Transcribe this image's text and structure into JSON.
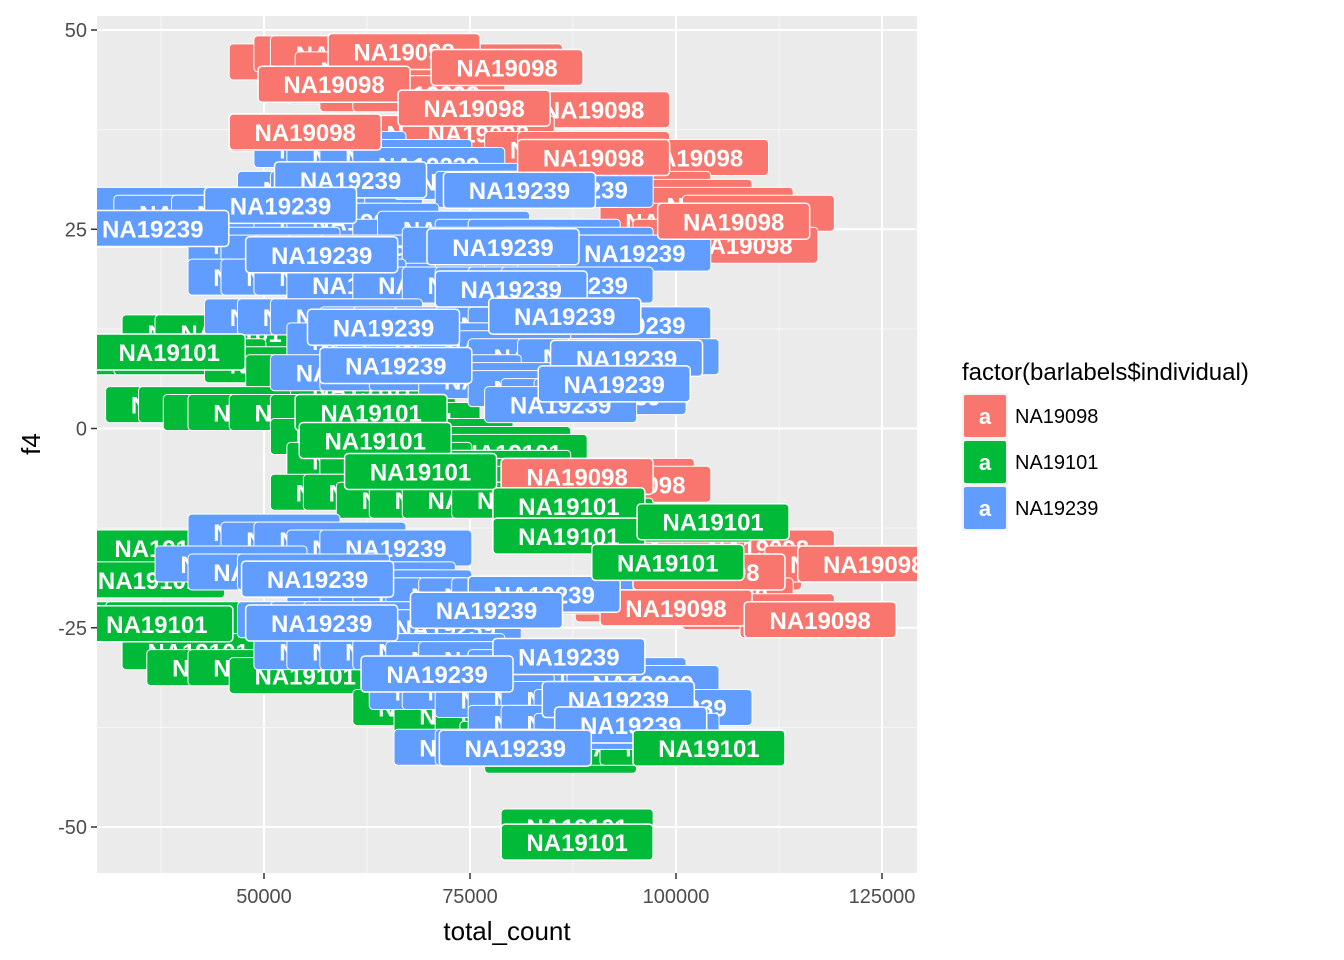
{
  "chart_data": {
    "type": "scatter",
    "geom": "label",
    "xlabel": "total_count",
    "ylabel": "f4",
    "xlim": [
      30000,
      128000
    ],
    "ylim": [
      -56,
      52
    ],
    "x_ticks": [
      50000,
      75000,
      100000,
      125000
    ],
    "x_minor_ticks": [
      37500,
      62500,
      87500,
      112500
    ],
    "y_ticks": [
      -50,
      -25,
      0,
      25,
      50
    ],
    "y_minor_ticks": [
      -37.5,
      -12.5,
      12.5,
      37.5
    ],
    "grid": true,
    "legend": {
      "title": "factor(barlabels$individual)",
      "placement": "right",
      "key_glyph": "a",
      "entries": [
        {
          "name": "NA19098",
          "color": "#F8766D"
        },
        {
          "name": "NA19101",
          "color": "#00BA38"
        },
        {
          "name": "NA19239",
          "color": "#619CFF"
        }
      ]
    },
    "series": [
      {
        "name": "NA19098",
        "color": "#F8766D",
        "points": [
          [
            55000,
            46
          ],
          [
            58000,
            47
          ],
          [
            60000,
            47
          ],
          [
            63000,
            45
          ],
          [
            67000,
            47
          ],
          [
            77000,
            46
          ],
          [
            62000,
            43
          ],
          [
            66000,
            42
          ],
          [
            70000,
            42
          ],
          [
            80000,
            40
          ],
          [
            84000,
            40
          ],
          [
            88000,
            40
          ],
          [
            90000,
            40
          ],
          [
            55000,
            37
          ],
          [
            61000,
            37
          ],
          [
            65000,
            37
          ],
          [
            71000,
            37
          ],
          [
            76000,
            37
          ],
          [
            86000,
            35
          ],
          [
            90000,
            35
          ],
          [
            93000,
            34
          ],
          [
            95000,
            34
          ],
          [
            98000,
            34
          ],
          [
            102000,
            34
          ],
          [
            95000,
            30
          ],
          [
            100000,
            29
          ],
          [
            105000,
            28
          ],
          [
            110000,
            27
          ],
          [
            100000,
            26
          ],
          [
            104000,
            24
          ],
          [
            108000,
            23
          ],
          [
            83000,
            -6
          ],
          [
            88000,
            -6
          ],
          [
            93000,
            -6
          ],
          [
            95000,
            -7
          ],
          [
            100000,
            -14
          ],
          [
            103000,
            -15
          ],
          [
            107000,
            -15
          ],
          [
            110000,
            -15
          ],
          [
            100000,
            -18
          ],
          [
            104000,
            -18
          ],
          [
            106000,
            -18
          ],
          [
            120000,
            -17
          ],
          [
            97000,
            -22
          ],
          [
            100000,
            -22
          ],
          [
            105000,
            -21
          ],
          [
            110000,
            -23
          ],
          [
            117000,
            -24
          ]
        ]
      },
      {
        "name": "NA19101",
        "color": "#00BA38",
        "points": [
          [
            42000,
            12
          ],
          [
            46000,
            12
          ],
          [
            38000,
            9
          ],
          [
            41000,
            9
          ],
          [
            52000,
            8
          ],
          [
            57000,
            7
          ],
          [
            60000,
            6
          ],
          [
            62000,
            5
          ],
          [
            40000,
            3
          ],
          [
            44000,
            3
          ],
          [
            47000,
            2
          ],
          [
            50000,
            2
          ],
          [
            55000,
            2
          ],
          [
            60000,
            2
          ],
          [
            64000,
            2
          ],
          [
            67000,
            1
          ],
          [
            60000,
            -1
          ],
          [
            64000,
            -1
          ],
          [
            66000,
            -1
          ],
          [
            71000,
            -1
          ],
          [
            75000,
            -2
          ],
          [
            78000,
            -2
          ],
          [
            80000,
            -3
          ],
          [
            62000,
            -4
          ],
          [
            66000,
            -4
          ],
          [
            70000,
            -5
          ],
          [
            74000,
            -5
          ],
          [
            78000,
            -5
          ],
          [
            80000,
            -6
          ],
          [
            85000,
            -7
          ],
          [
            60000,
            -8
          ],
          [
            64000,
            -8
          ],
          [
            68000,
            -9
          ],
          [
            72000,
            -9
          ],
          [
            76000,
            -9
          ],
          [
            82000,
            -9
          ],
          [
            88000,
            -11
          ],
          [
            92000,
            -12
          ],
          [
            96000,
            -12
          ],
          [
            100000,
            -12
          ],
          [
            35000,
            -15
          ],
          [
            38000,
            -15
          ],
          [
            36000,
            -19
          ],
          [
            35000,
            -24
          ],
          [
            40000,
            -24
          ],
          [
            42000,
            -28
          ],
          [
            45000,
            -30
          ],
          [
            50000,
            -30
          ],
          [
            55000,
            -31
          ],
          [
            70000,
            -35
          ],
          [
            75000,
            -36
          ],
          [
            80000,
            -36
          ],
          [
            83000,
            -39
          ],
          [
            86000,
            -41
          ],
          [
            94000,
            -40
          ],
          [
            100000,
            -40
          ],
          [
            104000,
            -40
          ],
          [
            88000,
            -50
          ]
        ]
      },
      {
        "name": "NA19239",
        "color": "#619CFF",
        "points": [
          [
            58000,
            35
          ],
          [
            62000,
            34
          ],
          [
            66000,
            34
          ],
          [
            70000,
            33
          ],
          [
            56000,
            30
          ],
          [
            60000,
            30
          ],
          [
            75000,
            31
          ],
          [
            80000,
            30
          ],
          [
            84000,
            30
          ],
          [
            88000,
            30
          ],
          [
            38000,
            28
          ],
          [
            41000,
            27
          ],
          [
            48000,
            27
          ],
          [
            53000,
            27
          ],
          [
            58000,
            26
          ],
          [
            62000,
            26
          ],
          [
            70000,
            24
          ],
          [
            73000,
            25
          ],
          [
            80000,
            24
          ],
          [
            84000,
            24
          ],
          [
            88000,
            23
          ],
          [
            36000,
            25
          ],
          [
            50000,
            23
          ],
          [
            54000,
            22
          ],
          [
            58000,
            22
          ],
          [
            62000,
            22
          ],
          [
            66000,
            22
          ],
          [
            76000,
            23
          ],
          [
            80000,
            22
          ],
          [
            86000,
            22
          ],
          [
            90000,
            22
          ],
          [
            95000,
            22
          ],
          [
            50000,
            19
          ],
          [
            54000,
            19
          ],
          [
            58000,
            19
          ],
          [
            62000,
            18
          ],
          [
            70000,
            18
          ],
          [
            76000,
            18
          ],
          [
            80000,
            18
          ],
          [
            84000,
            18
          ],
          [
            88000,
            18
          ],
          [
            52000,
            14
          ],
          [
            56000,
            14
          ],
          [
            60000,
            14
          ],
          [
            66000,
            13
          ],
          [
            70000,
            13
          ],
          [
            75000,
            13
          ],
          [
            80000,
            13
          ],
          [
            84000,
            13
          ],
          [
            90000,
            13
          ],
          [
            95000,
            13
          ],
          [
            62000,
            11
          ],
          [
            68000,
            11
          ],
          [
            72000,
            11
          ],
          [
            78000,
            10
          ],
          [
            84000,
            9
          ],
          [
            90000,
            9
          ],
          [
            96000,
            9
          ],
          [
            60000,
            7
          ],
          [
            66000,
            7
          ],
          [
            72000,
            7
          ],
          [
            78000,
            6
          ],
          [
            84000,
            5
          ],
          [
            88000,
            4
          ],
          [
            92000,
            4
          ],
          [
            86000,
            3
          ],
          [
            50000,
            -13
          ],
          [
            54000,
            -14
          ],
          [
            58000,
            -14
          ],
          [
            62000,
            -15
          ],
          [
            66000,
            -15
          ],
          [
            46000,
            -17
          ],
          [
            50000,
            -18
          ],
          [
            56000,
            -18
          ],
          [
            60000,
            -19
          ],
          [
            64000,
            -19
          ],
          [
            62000,
            -20
          ],
          [
            66000,
            -20
          ],
          [
            70000,
            -21
          ],
          [
            74000,
            -21
          ],
          [
            78000,
            -21
          ],
          [
            82000,
            -21
          ],
          [
            86000,
            -21
          ],
          [
            56000,
            -24
          ],
          [
            60000,
            -24
          ],
          [
            64000,
            -24
          ],
          [
            68000,
            -25
          ],
          [
            72000,
            -25
          ],
          [
            58000,
            -28
          ],
          [
            62000,
            -28
          ],
          [
            66000,
            -28
          ],
          [
            70000,
            -28
          ],
          [
            74000,
            -29
          ],
          [
            78000,
            -29
          ],
          [
            84000,
            -30
          ],
          [
            88000,
            -31
          ],
          [
            92000,
            -31
          ],
          [
            96000,
            -32
          ],
          [
            72000,
            -33
          ],
          [
            76000,
            -33
          ],
          [
            80000,
            -34
          ],
          [
            84000,
            -34
          ],
          [
            88000,
            -34
          ],
          [
            92000,
            -35
          ],
          [
            96000,
            -35
          ],
          [
            100000,
            -35
          ],
          [
            84000,
            -37
          ],
          [
            88000,
            -37
          ],
          [
            92000,
            -38
          ],
          [
            96000,
            -38
          ],
          [
            75000,
            -40
          ],
          [
            80000,
            -40
          ]
        ]
      }
    ],
    "front_labels": [
      {
        "text": "NA19098",
        "x": 67000,
        "y": 47.3,
        "series": "NA19098"
      },
      {
        "text": "NA19098",
        "x": 79500,
        "y": 45.3,
        "series": "NA19098"
      },
      {
        "text": "NA19098",
        "x": 58500,
        "y": 43.2,
        "series": "NA19098"
      },
      {
        "text": "NA19098",
        "x": 75500,
        "y": 40.2,
        "series": "NA19098"
      },
      {
        "text": "NA19098",
        "x": 55000,
        "y": 37.2,
        "series": "NA19098"
      },
      {
        "text": "NA19098",
        "x": 90000,
        "y": 34.0,
        "series": "NA19098"
      },
      {
        "text": "NA19098",
        "x": 107000,
        "y": 26.0,
        "series": "NA19098"
      },
      {
        "text": "NA19098",
        "x": 88000,
        "y": -6.0,
        "series": "NA19098"
      },
      {
        "text": "NA19098",
        "x": 104000,
        "y": -18.0,
        "series": "NA19098"
      },
      {
        "text": "NA19098",
        "x": 100000,
        "y": -22.5,
        "series": "NA19098"
      },
      {
        "text": "NA19098",
        "x": 117500,
        "y": -24.0,
        "series": "NA19098"
      },
      {
        "text": "NA19098",
        "x": 124000,
        "y": -17.0,
        "series": "NA19098"
      },
      {
        "text": "NA19239",
        "x": 60500,
        "y": 31.2,
        "series": "NA19239"
      },
      {
        "text": "NA19239",
        "x": 52000,
        "y": 28.0,
        "series": "NA19239"
      },
      {
        "text": "NA19239",
        "x": 36500,
        "y": 25.1,
        "series": "NA19239"
      },
      {
        "text": "NA19239",
        "x": 81000,
        "y": 29.9,
        "series": "NA19239"
      },
      {
        "text": "NA19239",
        "x": 57000,
        "y": 21.8,
        "series": "NA19239"
      },
      {
        "text": "NA19239",
        "x": 79000,
        "y": 22.8,
        "series": "NA19239"
      },
      {
        "text": "NA19239",
        "x": 80000,
        "y": 17.5,
        "series": "NA19239"
      },
      {
        "text": "NA19239",
        "x": 86500,
        "y": 14.1,
        "series": "NA19239"
      },
      {
        "text": "NA19239",
        "x": 64500,
        "y": 12.7,
        "series": "NA19239"
      },
      {
        "text": "NA19239",
        "x": 66000,
        "y": 7.9,
        "series": "NA19239"
      },
      {
        "text": "NA19239",
        "x": 94000,
        "y": 8.8,
        "series": "NA19239"
      },
      {
        "text": "NA19239",
        "x": 92500,
        "y": 5.6,
        "series": "NA19239"
      },
      {
        "text": "NA19239",
        "x": 56500,
        "y": -18.9,
        "series": "NA19239"
      },
      {
        "text": "NA19239",
        "x": 84000,
        "y": -20.8,
        "series": "NA19239"
      },
      {
        "text": "NA19239",
        "x": 77000,
        "y": -22.8,
        "series": "NA19239"
      },
      {
        "text": "NA19239",
        "x": 57000,
        "y": -24.4,
        "series": "NA19239"
      },
      {
        "text": "NA19239",
        "x": 87000,
        "y": -28.6,
        "series": "NA19239"
      },
      {
        "text": "NA19239",
        "x": 71000,
        "y": -30.8,
        "series": "NA19239"
      },
      {
        "text": "NA19239",
        "x": 93000,
        "y": -34.0,
        "series": "NA19239"
      },
      {
        "text": "NA19239",
        "x": 94500,
        "y": -37.2,
        "series": "NA19239"
      },
      {
        "text": "NA19239",
        "x": 80500,
        "y": -40.1,
        "series": "NA19239"
      },
      {
        "text": "NA19101",
        "x": 38500,
        "y": 9.6,
        "series": "NA19101"
      },
      {
        "text": "NA19101",
        "x": 63000,
        "y": 2.0,
        "series": "NA19101"
      },
      {
        "text": "NA19101",
        "x": 63500,
        "y": -1.5,
        "series": "NA19101"
      },
      {
        "text": "NA19101",
        "x": 69000,
        "y": -5.4,
        "series": "NA19101"
      },
      {
        "text": "NA19101",
        "x": 87000,
        "y": -9.7,
        "series": "NA19101"
      },
      {
        "text": "NA19101",
        "x": 87000,
        "y": -13.5,
        "series": "NA19101"
      },
      {
        "text": "NA19101",
        "x": 104500,
        "y": -11.7,
        "series": "NA19101"
      },
      {
        "text": "NA19101",
        "x": 99000,
        "y": -16.8,
        "series": "NA19101"
      },
      {
        "text": "NA19101",
        "x": 37000,
        "y": -24.5,
        "series": "NA19101"
      },
      {
        "text": "NA19101",
        "x": 104000,
        "y": -40.1,
        "series": "NA19101"
      },
      {
        "text": "NA19101",
        "x": 88000,
        "y": -51.9,
        "series": "NA19101"
      }
    ]
  }
}
